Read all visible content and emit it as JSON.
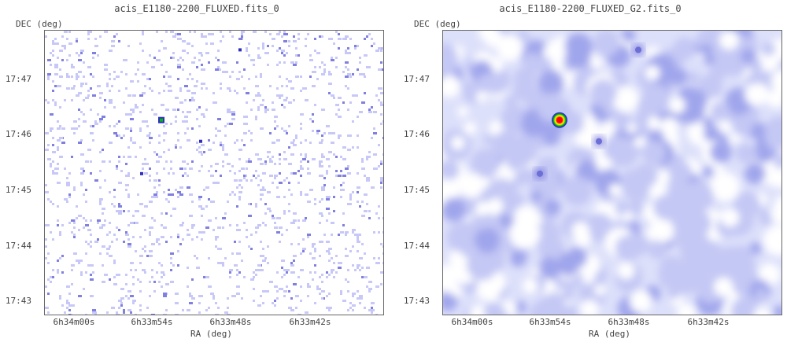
{
  "chart_data": [
    {
      "type": "heatmap",
      "title": "acis_E1180-2200_FLUXED.fits_0",
      "xlabel": "RA (deg)",
      "ylabel": "DEC (deg)",
      "x_ticks": [
        "6h34m00s",
        "6h33m54s",
        "6h33m48s",
        "6h33m42s"
      ],
      "y_ticks": [
        "17:47",
        "17:46",
        "17:45",
        "17:44",
        "17:43"
      ],
      "image_style": "sparse",
      "colormap": [
        "#ffffff",
        "#c8c8f8",
        "#8080e0",
        "#3030c0",
        "#00c000",
        "#ffff00",
        "#ff0000"
      ],
      "features": [
        {
          "ra": "6h33m54s",
          "dec": "17:46:16",
          "intensity": 1.0
        },
        {
          "ra": "6h33m51s",
          "dec": "17:45:53",
          "intensity": 0.45
        },
        {
          "ra": "6h33m55.5s",
          "dec": "17:45:18",
          "intensity": 0.35
        },
        {
          "ra": "6h33m48s",
          "dec": "17:47:32",
          "intensity": 0.5
        }
      ]
    },
    {
      "type": "heatmap",
      "title": "acis_E1180-2200_FLUXED_G2.fits_0",
      "xlabel": "RA (deg)",
      "ylabel": "DEC (deg)",
      "x_ticks": [
        "6h34m00s",
        "6h33m54s",
        "6h33m48s",
        "6h33m42s"
      ],
      "y_ticks": [
        "17:47",
        "17:46",
        "17:45",
        "17:44",
        "17:43"
      ],
      "image_style": "smoothed",
      "colormap": [
        "#ffffff",
        "#c8c8f8",
        "#8080e0",
        "#3030c0",
        "#00c000",
        "#ffff00",
        "#ff0000"
      ],
      "features": [
        {
          "ra": "6h33m54s",
          "dec": "17:46:16",
          "intensity": 1.0
        },
        {
          "ra": "6h33m51s",
          "dec": "17:45:53",
          "intensity": 0.55
        },
        {
          "ra": "6h33m55.5s",
          "dec": "17:45:18",
          "intensity": 0.4
        },
        {
          "ra": "6h33m48s",
          "dec": "17:47:32",
          "intensity": 0.5
        }
      ]
    }
  ]
}
